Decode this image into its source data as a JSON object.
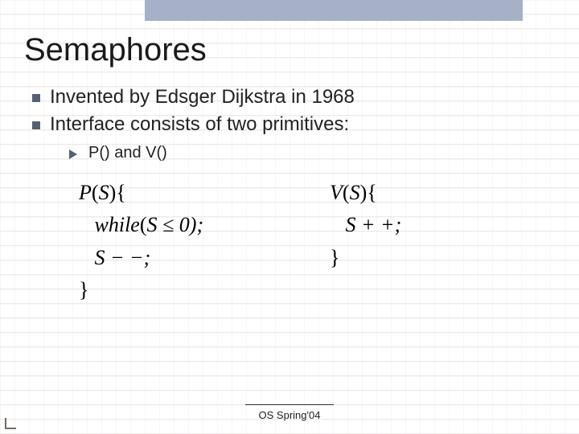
{
  "title": "Semaphores",
  "colors": {
    "top_band": "#a6b1c7",
    "bullet_square": "#556070",
    "bullet_triangle": "#556070",
    "text": "#1a1a1a"
  },
  "bullets": [
    {
      "text": "Invented by Edsger Dijkstra in 1968"
    },
    {
      "text": "Interface consists of two primitives:"
    }
  ],
  "subbullet": {
    "text": "P() and V()"
  },
  "code": {
    "left": {
      "l1a": "P",
      "l1b": "(",
      "l1c": "S",
      "l1d": ")",
      "l1e": "{",
      "l2a": "while",
      "l2b": "(",
      "l2c": "S",
      "l2d": " ≤ 0);",
      "l3a": "S",
      "l3b": " − −;",
      "l4": "}"
    },
    "right": {
      "l1a": "V",
      "l1b": "(",
      "l1c": "S",
      "l1d": ")",
      "l1e": "{",
      "l2a": "S",
      "l2b": " + +;",
      "l3": "}"
    }
  },
  "footer": "OS Spring'04"
}
